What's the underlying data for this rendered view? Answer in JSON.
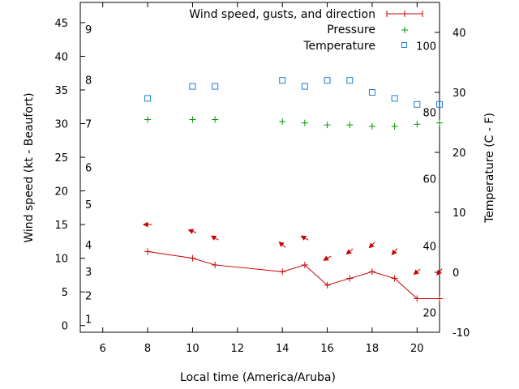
{
  "chart_data": {
    "type": "line",
    "xlabel": "Local time (America/Aruba)",
    "ylabel": "Wind speed (kt - Beaufort)",
    "y2label": "Temperature (C - F)",
    "xlim": [
      5,
      21
    ],
    "ylim": [
      -1,
      48
    ],
    "y2lim": [
      -10,
      45
    ],
    "xticks": [
      6,
      8,
      10,
      12,
      14,
      16,
      18,
      20
    ],
    "yticks": [
      0,
      5,
      10,
      15,
      20,
      25,
      30,
      35,
      40,
      45
    ],
    "y2ticks": [
      -10,
      0,
      10,
      20,
      30,
      40
    ],
    "beaufort_labels": [
      {
        "label": "1",
        "kt": 1
      },
      {
        "label": "2",
        "kt": 4.5
      },
      {
        "label": "3",
        "kt": 8
      },
      {
        "label": "4",
        "kt": 12
      },
      {
        "label": "5",
        "kt": 18
      },
      {
        "label": "6",
        "kt": 23.5
      },
      {
        "label": "7",
        "kt": 30
      },
      {
        "label": "8",
        "kt": 36.5
      },
      {
        "label": "9",
        "kt": 44
      }
    ],
    "fahrenheit_labels": [
      {
        "label": "20",
        "c": -6.7
      },
      {
        "label": "40",
        "c": 4.4
      },
      {
        "label": "60",
        "c": 15.6
      },
      {
        "label": "80",
        "c": 26.7
      },
      {
        "label": "100",
        "c": 37.8
      }
    ],
    "legend": [
      {
        "name": "Wind speed, gusts, and direction",
        "marker": "line-plus",
        "color": "#cc0000"
      },
      {
        "name": "Pressure",
        "marker": "plus",
        "color": "#009900"
      },
      {
        "name": "Temperature",
        "marker": "square",
        "color": "#1e7ed6"
      }
    ],
    "series": [
      {
        "name": "Wind speed",
        "color": "#cc0000",
        "x": [
          8,
          10,
          11,
          14,
          15,
          16,
          17,
          18,
          19,
          20,
          21
        ],
        "values": [
          11,
          10,
          9,
          8,
          9,
          6,
          7,
          8,
          7,
          4,
          4
        ]
      },
      {
        "name": "Wind direction",
        "color": "#cc0000",
        "x": [
          8,
          10,
          11,
          14,
          15,
          16,
          17,
          18,
          19,
          20,
          21
        ],
        "y": [
          15,
          14,
          13,
          12,
          13,
          10,
          11,
          12,
          11,
          8,
          8
        ],
        "direction_deg": [
          90,
          110,
          120,
          130,
          120,
          60,
          50,
          45,
          40,
          50,
          40
        ]
      },
      {
        "name": "Pressure",
        "color": "#009900",
        "x": [
          8,
          10,
          11,
          14,
          15,
          16,
          17,
          18,
          19,
          20,
          21
        ],
        "values": [
          30.6,
          30.6,
          30.6,
          30.3,
          30.1,
          29.8,
          29.8,
          29.6,
          29.6,
          29.9,
          30.1
        ]
      },
      {
        "name": "Temperature",
        "color": "#1e7ed6",
        "x": [
          8,
          10,
          11,
          14,
          15,
          16,
          17,
          18,
          19,
          20,
          21
        ],
        "values": [
          29,
          31,
          31,
          32,
          31,
          32,
          32,
          30,
          29,
          28,
          28
        ]
      }
    ]
  }
}
